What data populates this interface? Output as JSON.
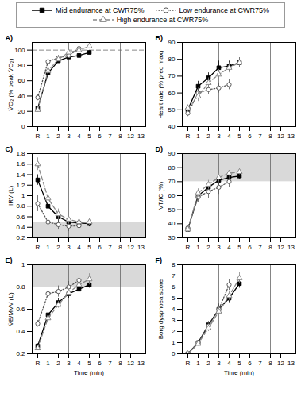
{
  "chart_data": [
    {
      "type": "line",
      "title": "A)",
      "y_label": "V̇O₂ (% peak V̇O₂)",
      "x_label": null,
      "categories": [
        "R",
        "1",
        "2",
        "3",
        "4",
        "5",
        "6",
        "7",
        "8",
        "12",
        "13"
      ],
      "ylim": [
        0,
        110
      ],
      "yticks": [
        0,
        20,
        40,
        60,
        80,
        100
      ],
      "hlines": [
        100
      ],
      "vlines": [
        "3",
        "8"
      ],
      "series": [
        {
          "name": "Mid endurance at CWR75%",
          "color": "#000000",
          "marker": "square",
          "line_style": "solid",
          "values": [
            24,
            70,
            86,
            91,
            93,
            97,
            null,
            null,
            null,
            null,
            null
          ],
          "errors": [
            3,
            3,
            3,
            2,
            2,
            2,
            null,
            null,
            null,
            null,
            null
          ]
        },
        {
          "name": "Low endurance at CWR75%",
          "color": "#555555",
          "marker": "circle",
          "line_style": "dotted",
          "values": [
            38,
            85,
            90,
            93,
            102,
            null,
            null,
            null,
            null,
            null,
            null
          ],
          "errors": [
            4,
            3,
            3,
            3,
            3,
            null,
            null,
            null,
            null,
            null,
            null
          ]
        },
        {
          "name": "High endurance at CWR75%",
          "color": "#888888",
          "marker": "triangle",
          "line_style": "dashed",
          "values": [
            22,
            73,
            88,
            97,
            100,
            105,
            null,
            null,
            null,
            null,
            null
          ],
          "errors": [
            3,
            3,
            3,
            3,
            3,
            3,
            null,
            null,
            null,
            null,
            null
          ]
        }
      ]
    },
    {
      "type": "line",
      "title": "B)",
      "y_label": "Heart rate (% pred max)",
      "x_label": null,
      "categories": [
        "R",
        "1",
        "2",
        "3",
        "4",
        "5",
        "6",
        "7",
        "8",
        "12",
        "13"
      ],
      "ylim": [
        40,
        90
      ],
      "yticks": [
        40,
        50,
        60,
        70,
        80,
        90
      ],
      "vlines": [
        "3",
        "8"
      ],
      "series": [
        {
          "name": "Mid endurance at CWR75%",
          "color": "#000000",
          "marker": "square",
          "line_style": "solid",
          "values": [
            50,
            64,
            69,
            75,
            76,
            78,
            null,
            null,
            null,
            null,
            null
          ],
          "errors": [
            2,
            3,
            3,
            4,
            3,
            3,
            null,
            null,
            null,
            null,
            null
          ]
        },
        {
          "name": "Low endurance at CWR75%",
          "color": "#555555",
          "marker": "circle",
          "line_style": "dotted",
          "values": [
            48,
            60,
            62,
            63,
            65,
            null,
            null,
            null,
            null,
            null,
            null
          ],
          "errors": [
            2,
            3,
            3,
            3,
            3,
            null,
            null,
            null,
            null,
            null,
            null
          ]
        },
        {
          "name": "High endurance at CWR75%",
          "color": "#888888",
          "marker": "triangle",
          "line_style": "dashed",
          "values": [
            51,
            58,
            66,
            71,
            75,
            78,
            null,
            null,
            null,
            null,
            null
          ],
          "errors": [
            2,
            3,
            3,
            3,
            3,
            3,
            null,
            null,
            null,
            null,
            null
          ]
        }
      ]
    },
    {
      "type": "line",
      "title": "C)",
      "y_label": "IRV (L)",
      "x_label": null,
      "categories": [
        "R",
        "1",
        "2",
        "3",
        "4",
        "5",
        "6",
        "7",
        "8",
        "12",
        "13"
      ],
      "ylim": [
        0.2,
        1.8
      ],
      "yticks": [
        0.2,
        0.4,
        0.6,
        0.8,
        1.0,
        1.2,
        1.4,
        1.6,
        1.8
      ],
      "bands": [
        [
          0.2,
          0.5
        ]
      ],
      "vlines": [
        "3",
        "8"
      ],
      "series": [
        {
          "name": "Mid endurance at CWR75%",
          "color": "#000000",
          "marker": "square",
          "line_style": "solid",
          "values": [
            1.3,
            0.8,
            0.6,
            0.5,
            0.48,
            0.47,
            null,
            null,
            null,
            null,
            null
          ],
          "errors": [
            0.1,
            0.1,
            0.1,
            0.08,
            0.06,
            0.06,
            null,
            null,
            null,
            null,
            null
          ]
        },
        {
          "name": "Low endurance at CWR75%",
          "color": "#555555",
          "marker": "circle",
          "line_style": "dotted",
          "values": [
            0.85,
            0.5,
            0.45,
            0.42,
            0.43,
            null,
            null,
            null,
            null,
            null,
            null
          ],
          "errors": [
            0.15,
            0.12,
            0.1,
            0.1,
            0.1,
            null,
            null,
            null,
            null,
            null,
            null
          ]
        },
        {
          "name": "High endurance at CWR75%",
          "color": "#888888",
          "marker": "triangle",
          "line_style": "dashed",
          "values": [
            1.6,
            0.95,
            0.65,
            0.55,
            0.5,
            0.5,
            null,
            null,
            null,
            null,
            null
          ],
          "errors": [
            0.12,
            0.12,
            0.1,
            0.08,
            0.07,
            0.06,
            null,
            null,
            null,
            null,
            null
          ]
        }
      ]
    },
    {
      "type": "line",
      "title": "D)",
      "y_label": "VT/IC (%)",
      "x_label": null,
      "categories": [
        "R",
        "1",
        "2",
        "3",
        "4",
        "5",
        "6",
        "7",
        "8",
        "12",
        "13"
      ],
      "ylim": [
        30,
        90
      ],
      "yticks": [
        30,
        40,
        50,
        60,
        70,
        80,
        90
      ],
      "bands": [
        [
          70,
          90
        ]
      ],
      "vlines": [
        "3",
        "8"
      ],
      "series": [
        {
          "name": "Mid endurance at CWR75%",
          "color": "#000000",
          "marker": "square",
          "line_style": "solid",
          "values": [
            36,
            60,
            66,
            71,
            73,
            74,
            null,
            null,
            null,
            null,
            null
          ],
          "errors": [
            2,
            3,
            3,
            3,
            3,
            2,
            null,
            null,
            null,
            null,
            null
          ]
        },
        {
          "name": "Low endurance at CWR75%",
          "color": "#555555",
          "marker": "circle",
          "line_style": "dotted",
          "values": [
            37,
            59,
            63,
            66,
            70,
            null,
            null,
            null,
            null,
            null,
            null
          ],
          "errors": [
            2,
            4,
            5,
            5,
            4,
            null,
            null,
            null,
            null,
            null,
            null
          ]
        },
        {
          "name": "High endurance at CWR75%",
          "color": "#888888",
          "marker": "triangle",
          "line_style": "dashed",
          "values": [
            36,
            62,
            68,
            73,
            76,
            77,
            null,
            null,
            null,
            null,
            null
          ],
          "errors": [
            2,
            3,
            3,
            3,
            2,
            2,
            null,
            null,
            null,
            null,
            null
          ]
        }
      ]
    },
    {
      "type": "line",
      "title": "E)",
      "y_label": "V̇E/MVV (L)",
      "x_label": "Time (min)",
      "categories": [
        "R",
        "1",
        "2",
        "3",
        "4",
        "5",
        "6",
        "7",
        "8",
        "12",
        "13"
      ],
      "ylim": [
        0.2,
        1.0
      ],
      "yticks": [
        0.2,
        0.4,
        0.6,
        0.8,
        1.0
      ],
      "bands": [
        [
          0.8,
          1.0
        ]
      ],
      "vlines": [
        "3",
        "8"
      ],
      "series": [
        {
          "name": "Mid endurance at CWR75%",
          "color": "#000000",
          "marker": "square",
          "line_style": "solid",
          "values": [
            0.27,
            0.55,
            0.66,
            0.74,
            0.78,
            0.82,
            null,
            null,
            null,
            null,
            null
          ],
          "errors": [
            0.02,
            0.03,
            0.04,
            0.04,
            0.03,
            0.03,
            null,
            null,
            null,
            null,
            null
          ]
        },
        {
          "name": "Low endurance at CWR75%",
          "color": "#555555",
          "marker": "circle",
          "line_style": "dotted",
          "values": [
            0.47,
            0.74,
            0.76,
            0.8,
            0.86,
            null,
            null,
            null,
            null,
            null,
            null
          ],
          "errors": [
            0.03,
            0.05,
            0.05,
            0.05,
            0.05,
            null,
            null,
            null,
            null,
            null,
            null
          ]
        },
        {
          "name": "High endurance at CWR75%",
          "color": "#888888",
          "marker": "triangle",
          "line_style": "dashed",
          "values": [
            0.25,
            0.52,
            0.64,
            0.75,
            0.82,
            0.87,
            null,
            null,
            null,
            null,
            null
          ],
          "errors": [
            0.02,
            0.03,
            0.03,
            0.03,
            0.04,
            0.05,
            null,
            null,
            null,
            null,
            null
          ]
        }
      ]
    },
    {
      "type": "line",
      "title": "F)",
      "y_label": "Borg dyspnoea score",
      "x_label": "Time (min)",
      "categories": [
        "R",
        "1",
        "2",
        "3",
        "4",
        "5",
        "6",
        "7",
        "8",
        "12",
        "13"
      ],
      "ylim": [
        0,
        8
      ],
      "yticks": [
        0,
        1,
        2,
        3,
        4,
        5,
        6,
        7,
        8
      ],
      "vlines": [
        "3",
        "8"
      ],
      "series": [
        {
          "name": "Mid endurance at CWR75%",
          "color": "#000000",
          "marker": "square",
          "line_style": "solid",
          "values": [
            0,
            1.0,
            2.6,
            4.0,
            5.0,
            6.3,
            null,
            null,
            null,
            null,
            null
          ],
          "errors": [
            0,
            0.2,
            0.3,
            0.4,
            0.4,
            0.4,
            null,
            null,
            null,
            null,
            null
          ]
        },
        {
          "name": "Low endurance at CWR75%",
          "color": "#555555",
          "marker": "circle",
          "line_style": "dotted",
          "values": [
            0,
            1.0,
            2.5,
            4.0,
            6.2,
            null,
            null,
            null,
            null,
            null,
            null
          ],
          "errors": [
            0,
            0.2,
            0.3,
            0.5,
            0.5,
            null,
            null,
            null,
            null,
            null,
            null
          ]
        },
        {
          "name": "High endurance at CWR75%",
          "color": "#888888",
          "marker": "triangle",
          "line_style": "dashed",
          "values": [
            0,
            0.9,
            2.3,
            3.8,
            5.2,
            6.8,
            null,
            null,
            null,
            null,
            null
          ],
          "errors": [
            0,
            0.2,
            0.3,
            0.4,
            0.4,
            0.5,
            null,
            null,
            null,
            null,
            null
          ]
        }
      ]
    }
  ]
}
